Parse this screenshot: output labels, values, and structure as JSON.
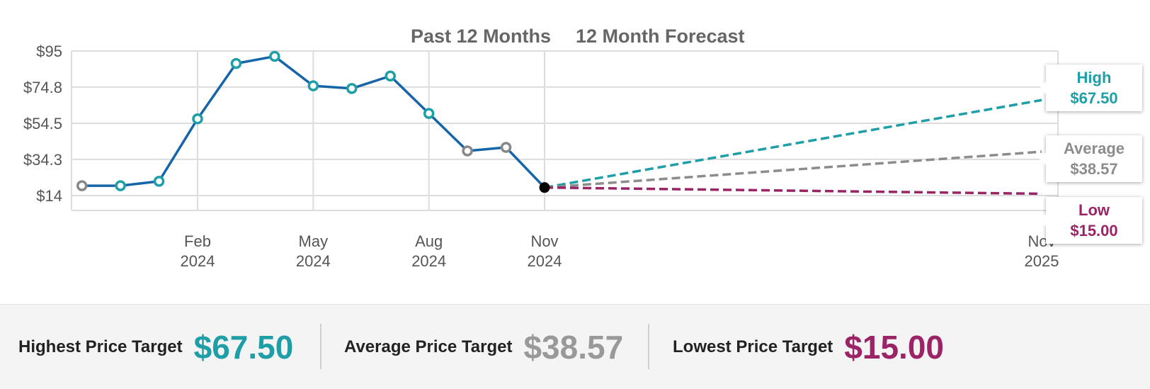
{
  "chart_data": {
    "type": "line",
    "headings": [
      "Past 12 Months",
      "12 Month Forecast"
    ],
    "y_ticks": [
      "$95",
      "$74.8",
      "$54.5",
      "$34.3",
      "$14"
    ],
    "ylim": [
      14,
      95
    ],
    "x_ticks": [
      {
        "month": "Feb",
        "year": "2024",
        "date": "2024-02"
      },
      {
        "month": "May",
        "year": "2024",
        "date": "2024-05"
      },
      {
        "month": "Aug",
        "year": "2024",
        "date": "2024-08"
      },
      {
        "month": "Nov",
        "year": "2024",
        "date": "2024-11"
      },
      {
        "month": "Nov",
        "year": "2025",
        "date": "2025-11"
      }
    ],
    "grid": true,
    "history": [
      {
        "date": "2023-11",
        "value": 19.5,
        "marker": "grey"
      },
      {
        "date": "2023-12",
        "value": 19.5,
        "marker": "teal"
      },
      {
        "date": "2024-01",
        "value": 22,
        "marker": "teal"
      },
      {
        "date": "2024-02",
        "value": 57,
        "marker": "teal"
      },
      {
        "date": "2024-03",
        "value": 88,
        "marker": "teal"
      },
      {
        "date": "2024-04",
        "value": 92,
        "marker": "teal"
      },
      {
        "date": "2024-05",
        "value": 75.5,
        "marker": "teal"
      },
      {
        "date": "2024-06",
        "value": 74,
        "marker": "teal"
      },
      {
        "date": "2024-07",
        "value": 81,
        "marker": "teal"
      },
      {
        "date": "2024-08",
        "value": 60,
        "marker": "teal"
      },
      {
        "date": "2024-09",
        "value": 39,
        "marker": "grey"
      },
      {
        "date": "2024-10",
        "value": 41,
        "marker": "grey"
      },
      {
        "date": "2024-11",
        "value": 18.5,
        "marker": "current"
      }
    ],
    "forecast": [
      {
        "name": "High",
        "value": 67.5,
        "label": "$67.50",
        "color": "#1e9fa7"
      },
      {
        "name": "Average",
        "value": 38.57,
        "label": "$38.57",
        "color": "#8c8c8c"
      },
      {
        "name": "Low",
        "value": 15.0,
        "label": "$15.00",
        "color": "#9b2467"
      }
    ],
    "line_color": "#1565a8"
  },
  "summary": {
    "highest": {
      "label": "Highest Price Target",
      "value": "$67.50",
      "color": "#1e9fa7"
    },
    "average": {
      "label": "Average Price Target",
      "value": "$38.57",
      "color": "#999999"
    },
    "lowest": {
      "label": "Lowest Price Target",
      "value": "$15.00",
      "color": "#9b2467"
    }
  }
}
